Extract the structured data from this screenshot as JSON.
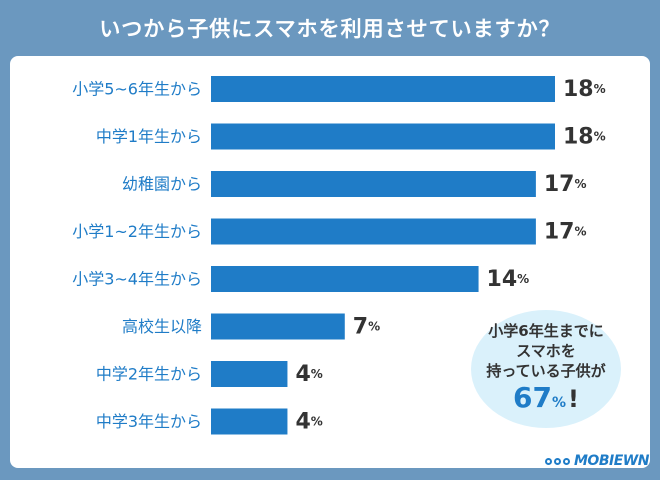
{
  "title": "いつから子供にスマホを利用させていますか？",
  "chart_data": {
    "type": "bar",
    "orientation": "horizontal",
    "categories": [
      "小学5~6年生から",
      "中学1年生から",
      "幼稚園から",
      "小学1~2年生から",
      "小学3~4年生から",
      "高校生以降",
      "中学2年生から",
      "中学3年生から"
    ],
    "values": [
      18,
      18,
      17,
      17,
      14,
      7,
      4,
      4
    ],
    "unit": "%",
    "xlim": [
      0,
      18
    ],
    "grid": false,
    "legend": "none"
  },
  "callout": {
    "line1": "小学6年生までに",
    "line2": "スマホを",
    "line3": "持っている子供が",
    "value": "67",
    "unit": "%",
    "exclaim": "!"
  },
  "logo": {
    "text": "MOBIEWN"
  },
  "colors": {
    "frame": "#6b98bf",
    "bar": "#1f7cc7",
    "label": "#1f7cc7",
    "value": "#333333",
    "callout_bg": "#daf1fb"
  }
}
